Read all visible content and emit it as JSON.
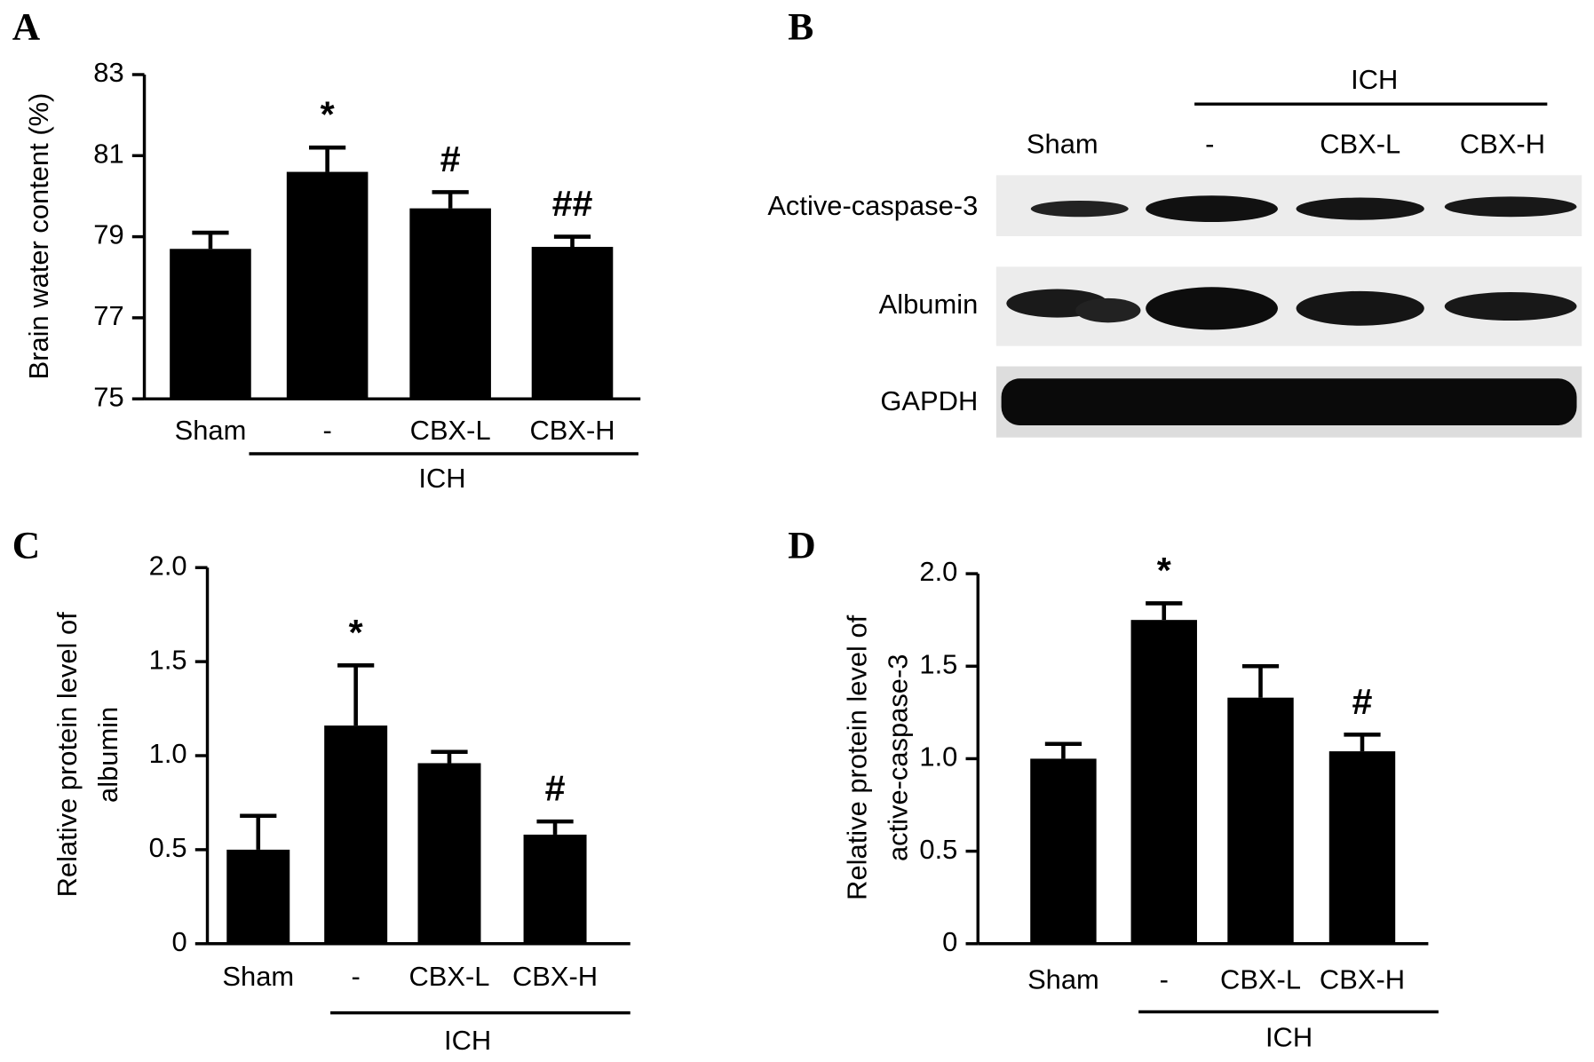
{
  "chart_data": [
    {
      "type": "bar",
      "panel": "A",
      "y_label": [
        "Brain water content (%)"
      ],
      "categories": [
        "Sham",
        "-",
        "CBX-L",
        "CBX-H"
      ],
      "group_label": "ICH",
      "values": [
        78.7,
        80.6,
        79.7,
        78.75
      ],
      "errors": [
        0.4,
        0.6,
        0.4,
        0.25
      ],
      "value_annotations": [
        null,
        "*",
        "#",
        "##"
      ],
      "color": "#000000",
      "ylim": [
        75,
        83
      ],
      "yticks": [
        75,
        77,
        79,
        81,
        83
      ]
    },
    {
      "type": "bar",
      "panel": "C",
      "y_label": [
        "Relative protein level of",
        "albumin"
      ],
      "categories": [
        "Sham",
        "-",
        "CBX-L",
        "CBX-H"
      ],
      "group_label": "ICH",
      "values": [
        0.5,
        1.16,
        0.96,
        0.58
      ],
      "errors": [
        0.18,
        0.32,
        0.06,
        0.07
      ],
      "value_annotations": [
        null,
        "*",
        null,
        "#"
      ],
      "color": "#000000",
      "ylim": [
        0,
        2
      ],
      "yticks": [
        0,
        0.5,
        {
          "value": 1,
          "label": "1.0"
        },
        1.5,
        {
          "value": 2,
          "label": "2.0"
        }
      ]
    },
    {
      "type": "bar",
      "panel": "D",
      "y_label": [
        "Relative protein level of",
        "active-caspase-3"
      ],
      "categories": [
        "Sham",
        "-",
        "CBX-L",
        "CBX-H"
      ],
      "group_label": "ICH",
      "values": [
        1.0,
        1.75,
        1.33,
        1.04
      ],
      "errors": [
        0.08,
        0.09,
        0.17,
        0.09
      ],
      "value_annotations": [
        null,
        "*",
        null,
        "#"
      ],
      "color": "#000000",
      "ylim": [
        0,
        2
      ],
      "yticks": [
        0,
        0.5,
        {
          "value": 1,
          "label": "1.0"
        },
        1.5,
        {
          "value": 2,
          "label": "2.0"
        }
      ]
    }
  ],
  "blot": {
    "panel": "B",
    "group_label": "ICH",
    "columns": [
      "Sham",
      "-",
      "CBX-L",
      "CBX-H"
    ],
    "rows": [
      "Active-caspase-3",
      "Albumin",
      "GAPDH"
    ]
  }
}
